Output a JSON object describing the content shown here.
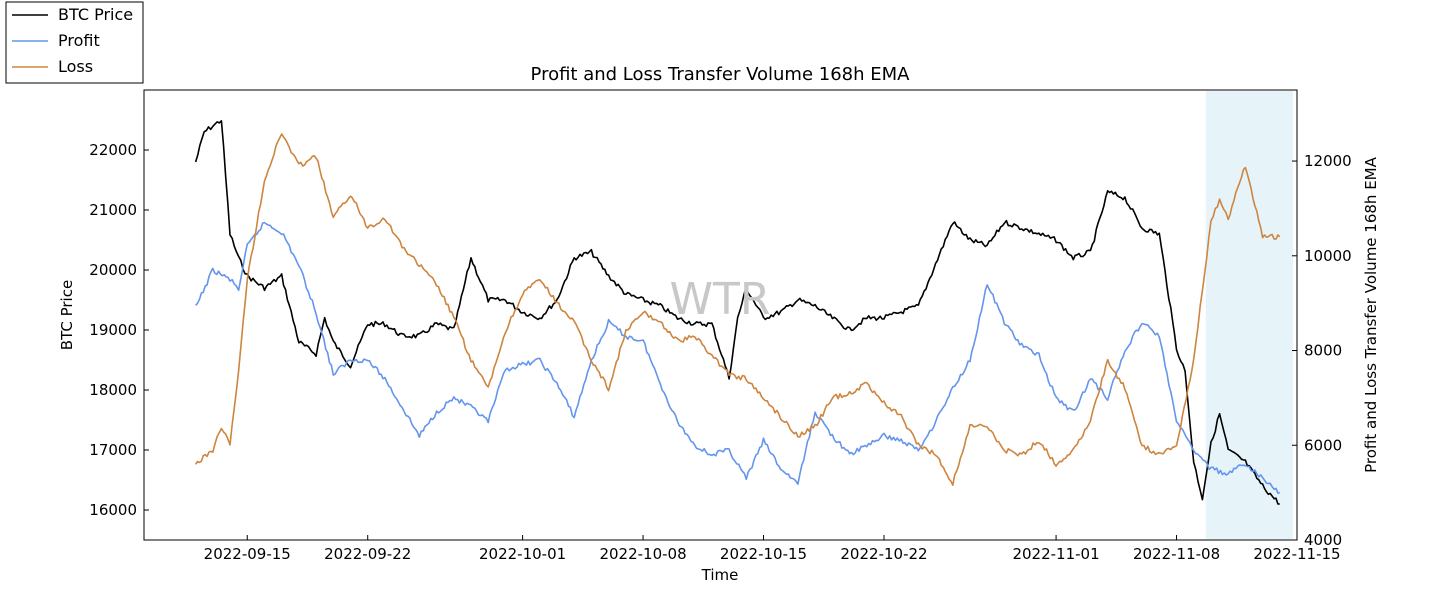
{
  "chart_data": {
    "type": "line",
    "title": "Profit and Loss Transfer Volume 168h EMA",
    "xlabel": "Time",
    "ylabel": "BTC Price",
    "ylabel_right": "Profit and Loss Transfer Volume 168h EMA",
    "watermark": "WTR",
    "x_range": [
      "2022-09-09",
      "2022-11-15"
    ],
    "ylim_left": [
      15500,
      23000
    ],
    "ylim_right": [
      4000,
      13500
    ],
    "x_ticks": [
      "2022-09-15",
      "2022-09-22",
      "2022-10-01",
      "2022-10-08",
      "2022-10-15",
      "2022-10-22",
      "2022-11-01",
      "2022-11-08",
      "2022-11-15"
    ],
    "y_ticks_left": [
      16000,
      17000,
      18000,
      19000,
      20000,
      21000,
      22000
    ],
    "y_ticks_right": [
      4000,
      6000,
      8000,
      10000,
      12000
    ],
    "forecast_region": [
      "2022-11-09",
      "2022-11-15"
    ],
    "legend": [
      "BTC Price",
      "Profit",
      "Loss"
    ],
    "colors": {
      "btc": "#000000",
      "profit": "#6495ed",
      "loss": "#cd853f",
      "forecast": "#e6f4fa"
    },
    "series": [
      {
        "name": "BTC Price",
        "axis": "left",
        "x": [
          "2022-09-12",
          "2022-09-12",
          "2022-09-13",
          "2022-09-13",
          "2022-09-14",
          "2022-09-14",
          "2022-09-15",
          "2022-09-16",
          "2022-09-17",
          "2022-09-18",
          "2022-09-19",
          "2022-09-19",
          "2022-09-20",
          "2022-09-21",
          "2022-09-22",
          "2022-09-23",
          "2022-09-24",
          "2022-09-25",
          "2022-09-26",
          "2022-09-27",
          "2022-09-28",
          "2022-09-29",
          "2022-09-30",
          "2022-10-01",
          "2022-10-02",
          "2022-10-03",
          "2022-10-04",
          "2022-10-05",
          "2022-10-06",
          "2022-10-07",
          "2022-10-08",
          "2022-10-09",
          "2022-10-10",
          "2022-10-11",
          "2022-10-12",
          "2022-10-13",
          "2022-10-13",
          "2022-10-14",
          "2022-10-15",
          "2022-10-16",
          "2022-10-17",
          "2022-10-18",
          "2022-10-19",
          "2022-10-20",
          "2022-10-21",
          "2022-10-22",
          "2022-10-23",
          "2022-10-24",
          "2022-10-25",
          "2022-10-26",
          "2022-10-27",
          "2022-10-28",
          "2022-10-29",
          "2022-10-30",
          "2022-10-31",
          "2022-11-01",
          "2022-11-02",
          "2022-11-03",
          "2022-11-04",
          "2022-11-05",
          "2022-11-06",
          "2022-11-07",
          "2022-11-08",
          "2022-11-08",
          "2022-11-09",
          "2022-11-09",
          "2022-11-10",
          "2022-11-10",
          "2022-11-11",
          "2022-11-12",
          "2022-11-13",
          "2022-11-14"
        ],
        "values": [
          21800,
          22300,
          22400,
          22500,
          20600,
          20200,
          19900,
          19700,
          19900,
          18800,
          18600,
          19200,
          18800,
          18400,
          19100,
          19100,
          18900,
          18900,
          19100,
          19000,
          20200,
          19500,
          19500,
          19300,
          19200,
          19500,
          20200,
          20300,
          19900,
          19600,
          19500,
          19400,
          19200,
          19100,
          19100,
          18200,
          19200,
          19700,
          19200,
          19300,
          19500,
          19400,
          19200,
          19000,
          19200,
          19200,
          19300,
          19400,
          20100,
          20800,
          20500,
          20400,
          20800,
          20700,
          20600,
          20500,
          20200,
          20300,
          21300,
          21200,
          20700,
          20600,
          18700,
          18300,
          16800,
          16200,
          17100,
          17600,
          17000,
          16800,
          16400,
          16100
        ]
      },
      {
        "name": "Profit",
        "axis": "right",
        "x": [
          "2022-09-12",
          "2022-09-13",
          "2022-09-14",
          "2022-09-14",
          "2022-09-15",
          "2022-09-16",
          "2022-09-17",
          "2022-09-18",
          "2022-09-19",
          "2022-09-20",
          "2022-09-21",
          "2022-09-22",
          "2022-09-23",
          "2022-09-24",
          "2022-09-25",
          "2022-09-26",
          "2022-09-27",
          "2022-09-28",
          "2022-09-29",
          "2022-09-30",
          "2022-10-01",
          "2022-10-02",
          "2022-10-03",
          "2022-10-04",
          "2022-10-05",
          "2022-10-06",
          "2022-10-07",
          "2022-10-08",
          "2022-10-09",
          "2022-10-10",
          "2022-10-11",
          "2022-10-12",
          "2022-10-13",
          "2022-10-14",
          "2022-10-15",
          "2022-10-16",
          "2022-10-17",
          "2022-10-18",
          "2022-10-19",
          "2022-10-20",
          "2022-10-21",
          "2022-10-22",
          "2022-10-23",
          "2022-10-24",
          "2022-10-25",
          "2022-10-26",
          "2022-10-27",
          "2022-10-28",
          "2022-10-29",
          "2022-10-30",
          "2022-10-31",
          "2022-11-01",
          "2022-11-02",
          "2022-11-03",
          "2022-11-04",
          "2022-11-05",
          "2022-11-06",
          "2022-11-07",
          "2022-11-08",
          "2022-11-09",
          "2022-11-10",
          "2022-11-11",
          "2022-11-12",
          "2022-11-13",
          "2022-11-14"
        ],
        "values": [
          8900,
          9700,
          9500,
          9300,
          10200,
          10700,
          10500,
          9800,
          8800,
          7500,
          7800,
          7800,
          7400,
          6800,
          6200,
          6700,
          7000,
          6800,
          6500,
          7600,
          7700,
          7800,
          7300,
          6600,
          7800,
          8600,
          8300,
          8200,
          7300,
          6500,
          6000,
          5800,
          5900,
          5300,
          6100,
          5500,
          5200,
          6700,
          6200,
          5800,
          6000,
          6200,
          6100,
          5900,
          6500,
          7200,
          7800,
          9400,
          8600,
          8100,
          7900,
          7000,
          6700,
          7400,
          7000,
          8000,
          8600,
          8300,
          6500,
          5900,
          5500,
          5400,
          5600,
          5300,
          5000
        ]
      },
      {
        "name": "Loss",
        "axis": "right",
        "x": [
          "2022-09-12",
          "2022-09-13",
          "2022-09-13",
          "2022-09-14",
          "2022-09-14",
          "2022-09-15",
          "2022-09-16",
          "2022-09-17",
          "2022-09-18",
          "2022-09-19",
          "2022-09-20",
          "2022-09-21",
          "2022-09-22",
          "2022-09-23",
          "2022-09-24",
          "2022-09-25",
          "2022-09-26",
          "2022-09-27",
          "2022-09-28",
          "2022-09-29",
          "2022-09-30",
          "2022-10-01",
          "2022-10-02",
          "2022-10-03",
          "2022-10-04",
          "2022-10-05",
          "2022-10-06",
          "2022-10-07",
          "2022-10-08",
          "2022-10-09",
          "2022-10-10",
          "2022-10-11",
          "2022-10-12",
          "2022-10-13",
          "2022-10-14",
          "2022-10-15",
          "2022-10-16",
          "2022-10-17",
          "2022-10-18",
          "2022-10-19",
          "2022-10-20",
          "2022-10-21",
          "2022-10-22",
          "2022-10-23",
          "2022-10-24",
          "2022-10-25",
          "2022-10-26",
          "2022-10-27",
          "2022-10-28",
          "2022-10-29",
          "2022-10-30",
          "2022-10-31",
          "2022-11-01",
          "2022-11-02",
          "2022-11-03",
          "2022-11-04",
          "2022-11-05",
          "2022-11-06",
          "2022-11-07",
          "2022-11-08",
          "2022-11-09",
          "2022-11-09",
          "2022-11-10",
          "2022-11-10",
          "2022-11-11",
          "2022-11-12",
          "2022-11-13",
          "2022-11-14"
        ],
        "values": [
          5600,
          5900,
          6400,
          6000,
          7600,
          9500,
          11600,
          12600,
          11900,
          12100,
          10800,
          11300,
          10600,
          10800,
          10200,
          9800,
          9400,
          8700,
          7800,
          7200,
          8400,
          9200,
          9500,
          9000,
          8600,
          7800,
          7200,
          8400,
          8800,
          8600,
          8200,
          8300,
          7900,
          7500,
          7400,
          7000,
          6600,
          6200,
          6400,
          7000,
          7100,
          7300,
          6900,
          6600,
          6000,
          5800,
          5200,
          6400,
          6400,
          5900,
          5800,
          6100,
          5600,
          5900,
          6500,
          7800,
          7200,
          6000,
          5800,
          6000,
          7800,
          9300,
          10700,
          11200,
          10800,
          11900,
          10400,
          10400
        ]
      }
    ]
  }
}
